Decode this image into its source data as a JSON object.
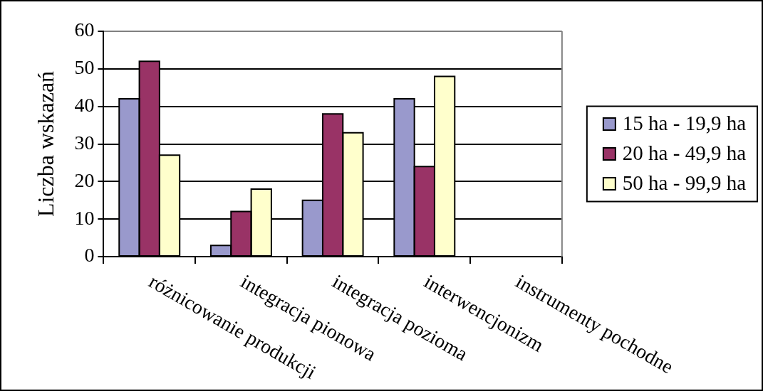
{
  "chart_data": {
    "type": "bar",
    "ylabel": "Liczba wskazań",
    "categories": [
      "różnicowanie produkcji",
      "integracja pionowa",
      "integracja pozioma",
      "interwencjonizm",
      "instrumenty pochodne"
    ],
    "series": [
      {
        "name": "15 ha - 19,9 ha",
        "color": "#9999cc",
        "values": [
          42,
          3,
          15,
          42,
          0
        ]
      },
      {
        "name": "20 ha - 49,9 ha",
        "color": "#993366",
        "values": [
          52,
          12,
          38,
          24,
          0
        ]
      },
      {
        "name": "50 ha - 99,9 ha",
        "color": "#ffffcc",
        "values": [
          27,
          18,
          33,
          48,
          0
        ]
      }
    ],
    "ylim": [
      0,
      60
    ],
    "yticks": [
      0,
      10,
      20,
      30,
      40,
      50,
      60
    ],
    "grid": "y",
    "legend": "right"
  }
}
